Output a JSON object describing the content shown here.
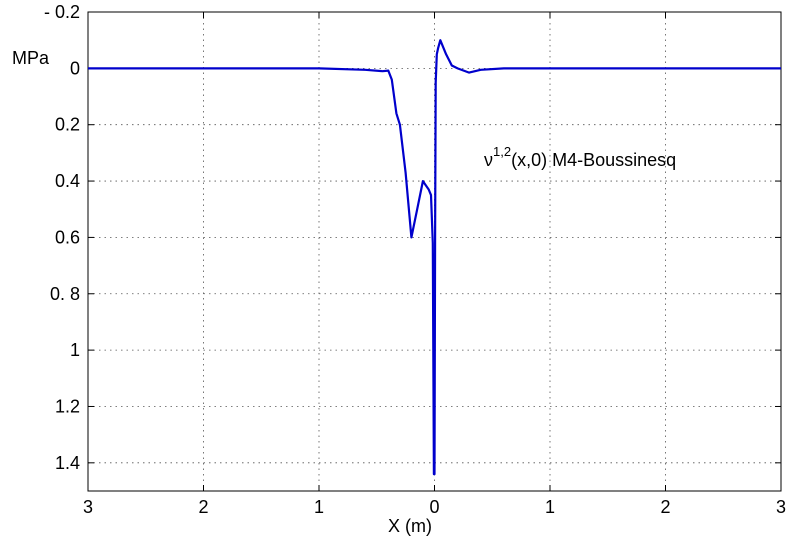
{
  "chart_data": {
    "type": "line",
    "title": "",
    "xlabel": "X (m)",
    "ylabel": "MPa",
    "annotation": {
      "base": "ν",
      "superscript": "1,2",
      "rest": "(x,0) M4-Boussinesq"
    },
    "xlim": [
      -3,
      3
    ],
    "ylim": [
      -0.2,
      1.5
    ],
    "y_inverted": true,
    "grid": true,
    "grid_style": "dotted",
    "x_ticks": [
      {
        "value": -3,
        "label": "3"
      },
      {
        "value": -2,
        "label": "2"
      },
      {
        "value": -1,
        "label": "1"
      },
      {
        "value": 0,
        "label": "0"
      },
      {
        "value": 1,
        "label": "1"
      },
      {
        "value": 2,
        "label": "2"
      },
      {
        "value": 3,
        "label": "3"
      }
    ],
    "y_ticks": [
      {
        "value": -0.2,
        "label": "- 0.2"
      },
      {
        "value": 0,
        "label": "0"
      },
      {
        "value": 0.2,
        "label": "0.2"
      },
      {
        "value": 0.4,
        "label": "0.4"
      },
      {
        "value": 0.6,
        "label": "0.6"
      },
      {
        "value": 0.8,
        "label": "0. 8"
      },
      {
        "value": 1.0,
        "label": "1"
      },
      {
        "value": 1.2,
        "label": "1.2"
      },
      {
        "value": 1.4,
        "label": "1.4"
      }
    ],
    "series": [
      {
        "color": "#0000cc",
        "x": [
          -3.0,
          -2.0,
          -1.0,
          -0.6,
          -0.45,
          -0.4,
          -0.37,
          -0.33,
          -0.3,
          -0.25,
          -0.2,
          -0.15,
          -0.1,
          -0.05,
          -0.03,
          -0.015,
          -0.01,
          -0.005,
          0.0,
          0.005,
          0.01,
          0.02,
          0.03,
          0.05,
          0.1,
          0.15,
          0.2,
          0.3,
          0.4,
          0.6,
          1.0,
          2.0,
          3.0
        ],
        "y": [
          0.0,
          0.0,
          0.0,
          0.005,
          0.01,
          0.008,
          0.04,
          0.16,
          0.2,
          0.37,
          0.6,
          0.5,
          0.4,
          0.43,
          0.45,
          0.62,
          1.0,
          1.44,
          1.44,
          0.6,
          0.05,
          -0.05,
          -0.07,
          -0.1,
          -0.05,
          -0.01,
          0.0,
          0.015,
          0.005,
          0.0,
          0.0,
          0.0,
          0.0
        ]
      }
    ]
  }
}
